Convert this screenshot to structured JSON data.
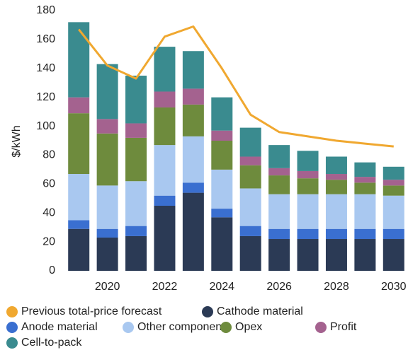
{
  "chart_data": {
    "type": "bar",
    "stacked": true,
    "ylabel": "$/kWh",
    "categories": [
      null,
      "2020",
      null,
      "2022",
      null,
      "2024",
      null,
      "2026",
      null,
      "2028",
      null,
      "2030"
    ],
    "ylim": [
      0,
      180
    ],
    "yticks": [
      0,
      20,
      40,
      60,
      80,
      100,
      120,
      140,
      160,
      180
    ],
    "grid": false,
    "series": [
      {
        "name": "Previous total-price forecast",
        "type": "line",
        "color": "#f0a830",
        "values": [
          167,
          142,
          133,
          162,
          169,
          140,
          108,
          96,
          93,
          90,
          88,
          86
        ]
      },
      {
        "name": "Cathode material",
        "color": "#2b3a55",
        "values": [
          29,
          23,
          24,
          45,
          54,
          37,
          24,
          22,
          22,
          22,
          22,
          22
        ]
      },
      {
        "name": "Anode material",
        "color": "#3a6fd0",
        "values": [
          6,
          6,
          7,
          7,
          7,
          6,
          7,
          7,
          7,
          7,
          7,
          7
        ]
      },
      {
        "name": "Other components",
        "color": "#a9c8f0",
        "values": [
          32,
          30,
          31,
          35,
          32,
          27,
          26,
          24,
          24,
          24,
          24,
          23
        ]
      },
      {
        "name": "Opex",
        "color": "#6e8b3d",
        "values": [
          42,
          36,
          30,
          26,
          22,
          20,
          16,
          13,
          11,
          10,
          8,
          7
        ]
      },
      {
        "name": "Profit",
        "color": "#a4628f",
        "values": [
          11,
          10,
          10,
          11,
          11,
          7,
          6,
          5,
          5,
          4,
          4,
          4
        ]
      },
      {
        "name": "Cell-to-pack",
        "color": "#3a8b8f",
        "values": [
          52,
          38,
          33,
          31,
          26,
          23,
          20,
          16,
          14,
          12,
          10,
          9
        ]
      }
    ]
  }
}
